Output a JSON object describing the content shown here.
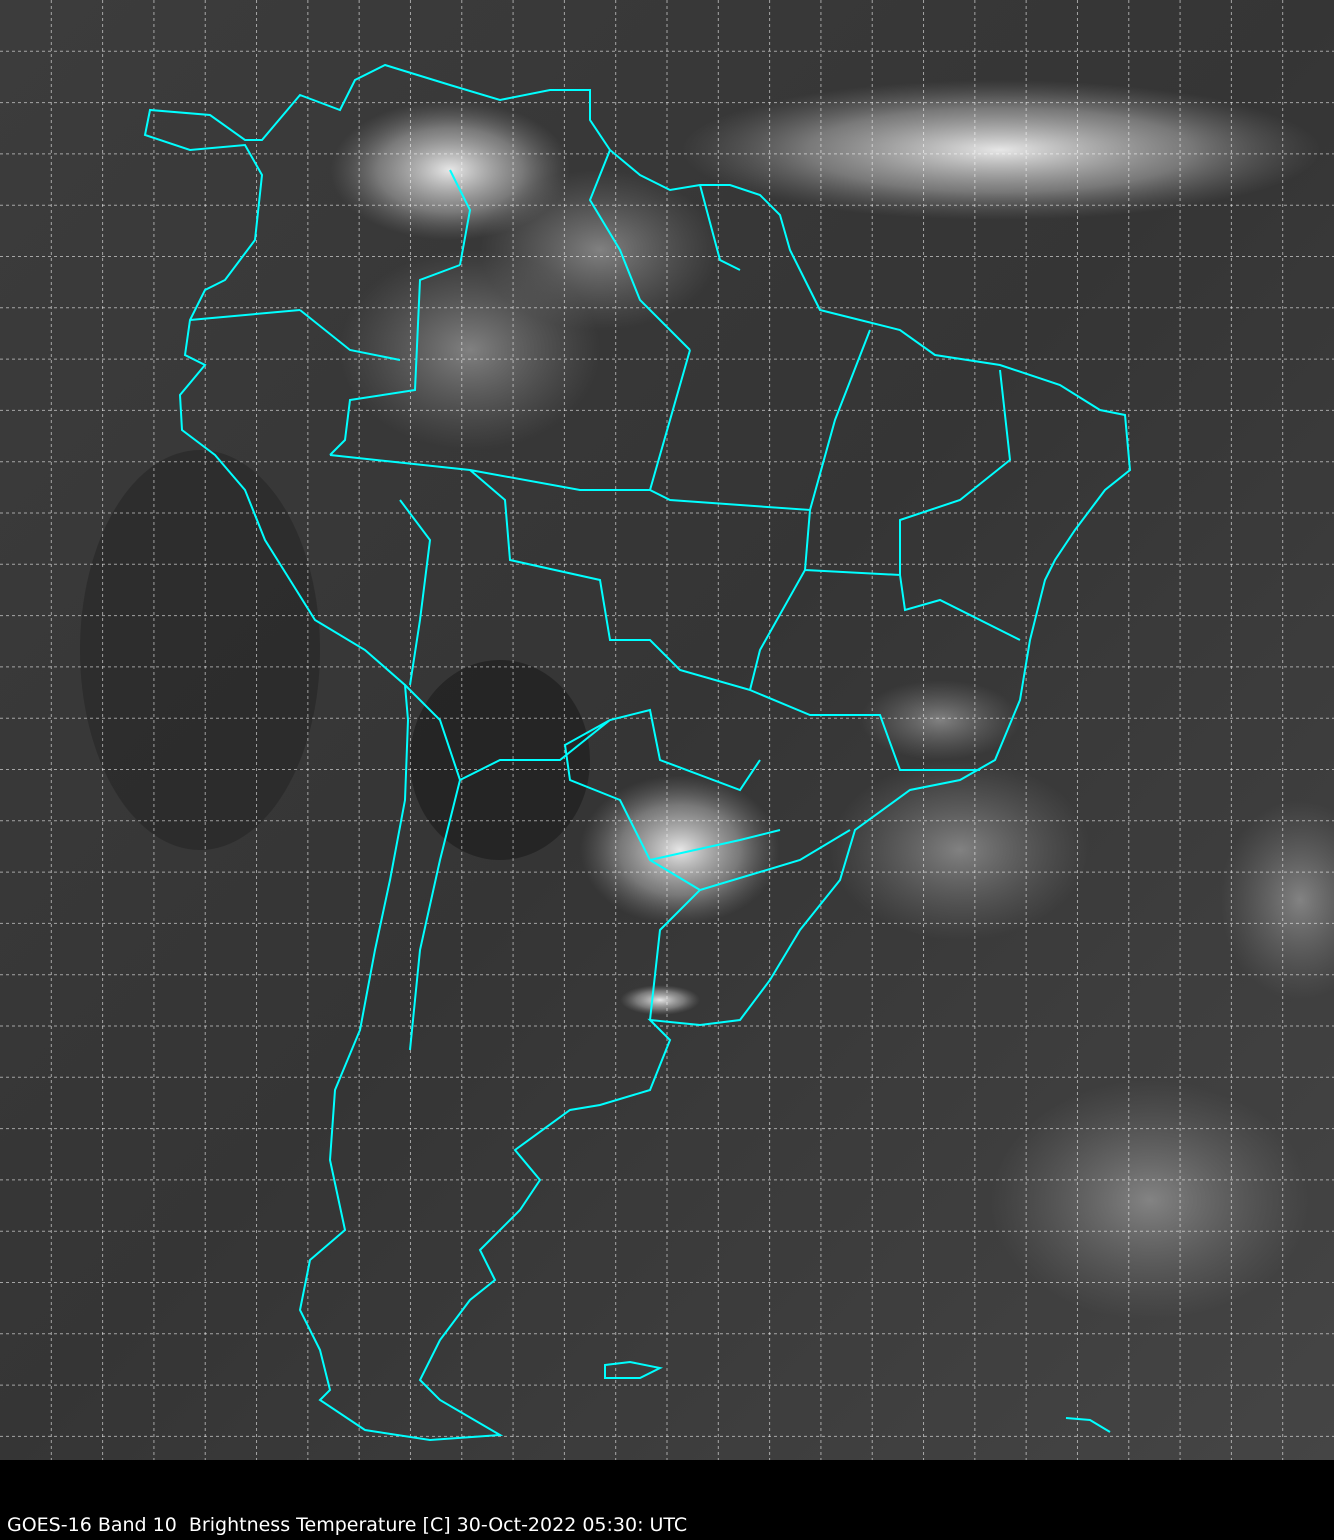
{
  "caption": "GOES-16 Band 10  Brightness Temperature [C] 30-Oct-2022 05:30: UTC",
  "map": {
    "coastline_color": "#00ffff",
    "grid_color": "#ffffff",
    "grid_style": "dashed",
    "colormap": "grayscale"
  }
}
